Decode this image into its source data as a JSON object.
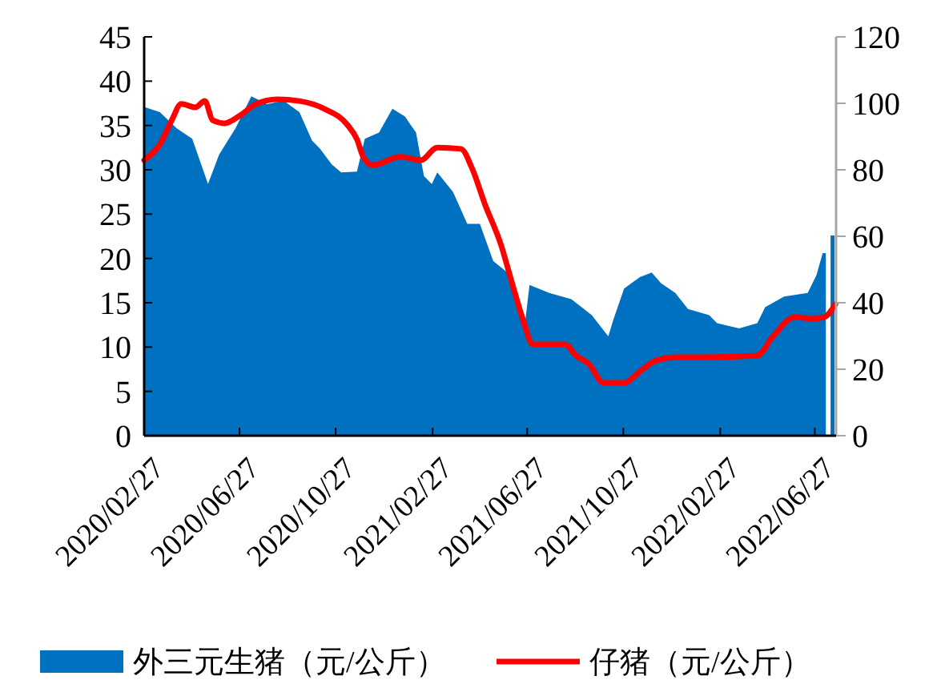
{
  "chart_data": {
    "type": "area",
    "legend": "bottom",
    "xlim": [
      "2020-02-27",
      "2022-07-24"
    ],
    "xticks": [
      {
        "value": "2020-02-27",
        "label": "2020/02/27"
      },
      {
        "value": "2020-06-27",
        "label": "2020/06/27"
      },
      {
        "value": "2020-10-27",
        "label": "2020/10/27"
      },
      {
        "value": "2021-02-27",
        "label": "2021/02/27"
      },
      {
        "value": "2021-06-27",
        "label": "2021/06/27"
      },
      {
        "value": "2021-10-27",
        "label": "2021/10/27"
      },
      {
        "value": "2022-02-27",
        "label": "2022/02/27"
      },
      {
        "value": "2022-06-27",
        "label": "2022/06/27"
      }
    ],
    "ylim": [
      0,
      45
    ],
    "yticks": [
      0,
      5,
      10,
      15,
      20,
      25,
      30,
      35,
      40,
      45
    ],
    "y2lim": [
      0,
      120
    ],
    "y2ticks": [
      0,
      20,
      40,
      60,
      80,
      100,
      120
    ],
    "series": [
      {
        "name": "外三元生猪（元/公斤）",
        "color": "#0070c0",
        "x": [
          "2020-02-27",
          "2020-03-18",
          "2020-04-08",
          "2020-04-28",
          "2020-05-18",
          "2020-06-01",
          "2020-06-22",
          "2020-07-12",
          "2020-08-01",
          "2020-08-22",
          "2020-09-11",
          "2020-09-27",
          "2020-10-07",
          "2020-10-22",
          "2020-11-03",
          "2020-11-23",
          "2020-12-03",
          "2020-12-21",
          "2021-01-07",
          "2021-01-23",
          "2021-02-06",
          "2021-02-16",
          "2021-02-26",
          "2021-03-05",
          "2021-03-25",
          "2021-04-12",
          "2021-04-28",
          "2021-05-15",
          "2021-06-02",
          "2021-06-24",
          "2021-06-30",
          "2021-07-25",
          "2021-08-22",
          "2021-09-17",
          "2021-10-08",
          "2021-10-14",
          "2021-10-28",
          "2021-11-17",
          "2021-12-02",
          "2021-12-14",
          "2022-01-01",
          "2022-01-17",
          "2022-02-13",
          "2022-02-23",
          "2022-03-23",
          "2022-04-15",
          "2022-04-25",
          "2022-05-19",
          "2022-06-18",
          "2022-06-29",
          "2022-07-07",
          "2022-07-11",
          "2022-07-14",
          "2022-07-17",
          "2022-07-22"
        ],
        "values": [
          37.1,
          36.5,
          34.7,
          33.5,
          28.4,
          31.7,
          34.7,
          38.3,
          37.4,
          37.8,
          36.5,
          33.3,
          32.4,
          30.6,
          29.7,
          29.8,
          33.5,
          34.2,
          36.9,
          36.0,
          34.2,
          29.3,
          28.4,
          29.7,
          27.5,
          23.9,
          23.9,
          19.7,
          18.4,
          12.5,
          17.0,
          16.1,
          15.4,
          13.6,
          11.2,
          13.0,
          16.6,
          17.9,
          18.4,
          17.2,
          16.1,
          14.3,
          13.6,
          12.7,
          12.1,
          12.7,
          14.5,
          15.7,
          16.1,
          18.1,
          20.6,
          20.6,
          null,
          22.6,
          22.6
        ]
      },
      {
        "name": "仔猪（元/公斤）",
        "type": "line",
        "axis": "y2",
        "color": "#ff0000",
        "x": [
          "2020-02-27",
          "2020-03-18",
          "2020-04-02",
          "2020-04-14",
          "2020-05-02",
          "2020-05-14",
          "2020-05-24",
          "2020-06-08",
          "2020-06-28",
          "2020-07-18",
          "2020-08-14",
          "2020-09-11",
          "2020-10-13",
          "2020-11-11",
          "2020-11-23",
          "2020-12-01",
          "2020-12-13",
          "2021-01-17",
          "2021-02-12",
          "2021-03-05",
          "2021-04-04",
          "2021-04-18",
          "2021-05-04",
          "2021-05-25",
          "2021-06-08",
          "2021-06-22",
          "2021-07-04",
          "2021-08-14",
          "2021-08-28",
          "2021-09-13",
          "2021-10-02",
          "2021-10-28",
          "2021-11-17",
          "2021-12-08",
          "2022-01-03",
          "2022-02-07",
          "2022-04-15",
          "2022-05-05",
          "2022-06-02",
          "2022-06-23",
          "2022-07-09",
          "2022-07-23"
        ],
        "values": [
          82.9,
          87.7,
          94.9,
          99.8,
          98.8,
          100.7,
          94.9,
          94.0,
          96.4,
          99.8,
          101.2,
          100.7,
          98.3,
          93.5,
          89.2,
          83.9,
          81.4,
          83.9,
          82.9,
          86.7,
          86.3,
          80.5,
          69.9,
          57.3,
          45.8,
          34.7,
          27.5,
          27.5,
          24.1,
          21.7,
          15.9,
          15.9,
          19.3,
          22.7,
          23.6,
          23.6,
          24.1,
          29.9,
          35.7,
          35.2,
          35.7,
          39.5
        ]
      }
    ]
  }
}
